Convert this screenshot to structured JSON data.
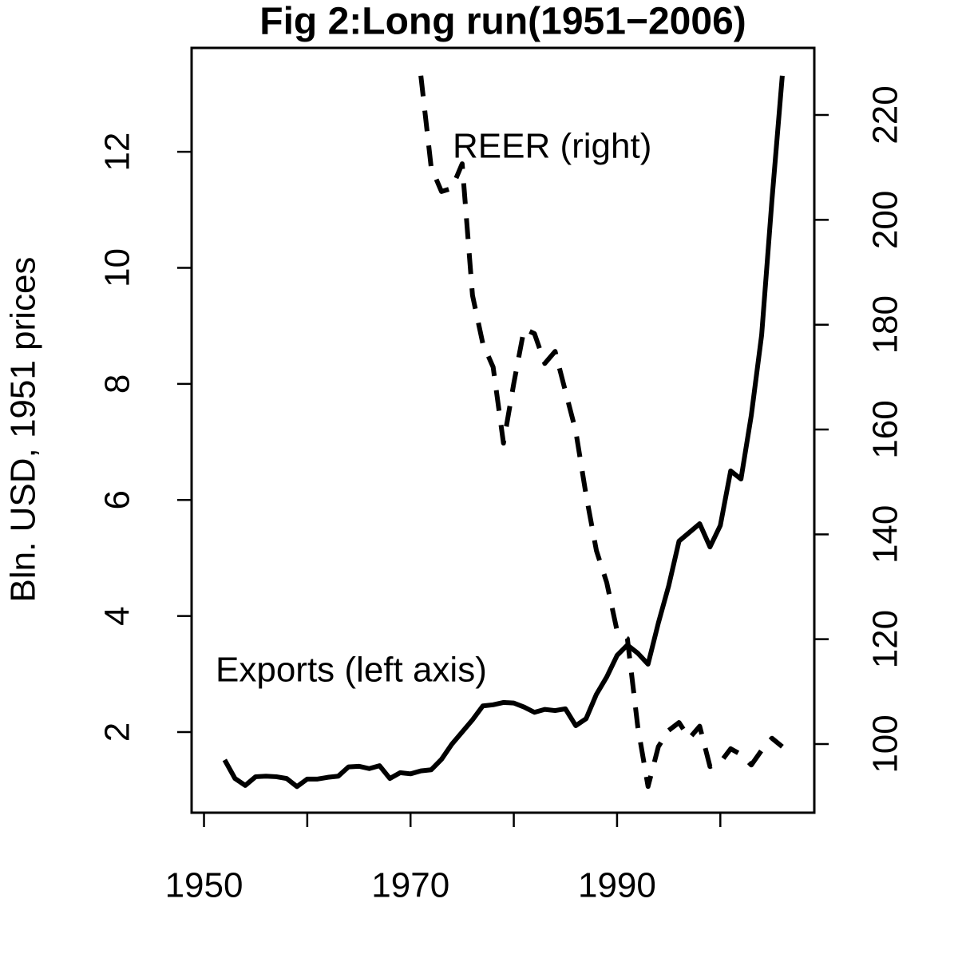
{
  "chart_data": {
    "type": "line",
    "title": "Fig 2:Long run(1951−2006)",
    "y_label": "Bln. USD, 1951 prices",
    "x": [
      1952,
      1953,
      1954,
      1955,
      1956,
      1957,
      1958,
      1959,
      1960,
      1961,
      1962,
      1963,
      1964,
      1965,
      1966,
      1967,
      1968,
      1969,
      1970,
      1971,
      1972,
      1973,
      1974,
      1975,
      1976,
      1977,
      1978,
      1979,
      1980,
      1981,
      1982,
      1983,
      1984,
      1985,
      1986,
      1987,
      1988,
      1989,
      1990,
      1991,
      1992,
      1993,
      1994,
      1995,
      1996,
      1997,
      1998,
      1999,
      2000,
      2001,
      2002,
      2003,
      2004,
      2005,
      2006
    ],
    "series": [
      {
        "name": "Exports (left axis)",
        "color": "#000000",
        "dash": "solid",
        "values": [
          1.52,
          1.2,
          1.08,
          1.23,
          1.24,
          1.23,
          1.2,
          1.06,
          1.19,
          1.19,
          1.22,
          1.24,
          1.4,
          1.41,
          1.37,
          1.42,
          1.2,
          1.3,
          1.28,
          1.33,
          1.35,
          1.53,
          1.79,
          2.0,
          2.21,
          2.45,
          2.47,
          2.51,
          2.5,
          2.43,
          2.34,
          2.39,
          2.37,
          2.4,
          2.11,
          2.23,
          2.65,
          2.95,
          3.32,
          3.5,
          3.36,
          3.17,
          3.88,
          4.52,
          5.29,
          5.44,
          5.59,
          5.19,
          5.56,
          6.5,
          6.36,
          7.46,
          8.84,
          11.17,
          13.31
        ]
      },
      {
        "name": "REER (right)",
        "color": "#000000",
        "dash": "dashed",
        "axis": "y2",
        "values": [
          null,
          null,
          null,
          null,
          null,
          null,
          null,
          null,
          null,
          null,
          null,
          null,
          null,
          null,
          null,
          null,
          null,
          null,
          null,
          227.5,
          210,
          205.4,
          206,
          210.7,
          185.6,
          176.4,
          171.9,
          157.4,
          168.8,
          179.2,
          178.3,
          172.6,
          174.9,
          167.3,
          159.7,
          147.5,
          136.9,
          130.8,
          121.6,
          120.1,
          103.4,
          91.9,
          99.5,
          102.6,
          104.1,
          101.1,
          103.4,
          95.7,
          96.5,
          99.1,
          98,
          96,
          98.8,
          101.1,
          99.5
        ]
      }
    ],
    "xlim": [
      1948.8,
      2009.1
    ],
    "xticks": [
      1950,
      1970,
      1990
    ],
    "xminor_ticks": [
      1960,
      1980,
      2000
    ],
    "ylim": [
      0.61,
      13.79
    ],
    "yticks": [
      2,
      4,
      6,
      8,
      10,
      12
    ],
    "y2lim": [
      86.9,
      232.8
    ],
    "y2ticks": [
      100,
      120,
      140,
      160,
      180,
      200,
      220
    ]
  }
}
